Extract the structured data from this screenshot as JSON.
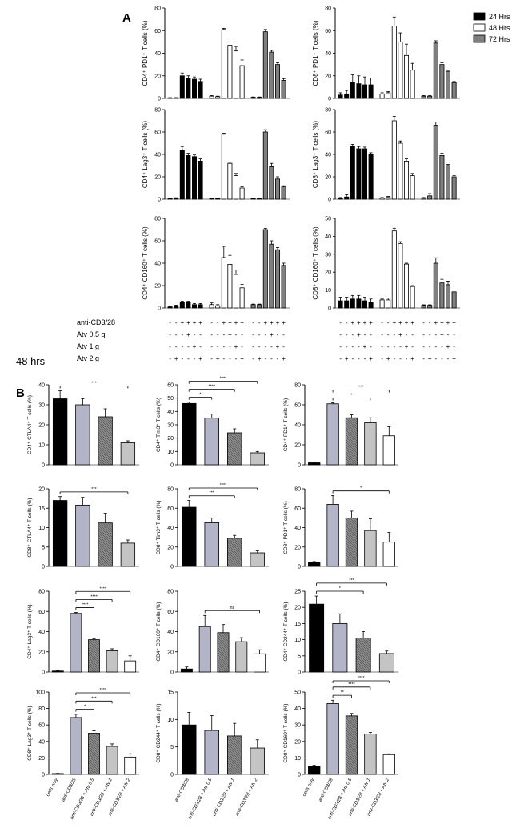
{
  "panel_labels": {
    "a": "A",
    "b": "B"
  },
  "section_label": "48 hrs",
  "legend": [
    {
      "label": "24 Hrs",
      "color": "#000000"
    },
    {
      "label": "48 Hrs",
      "color": "#ffffff"
    },
    {
      "label": "72 Hrs",
      "color": "#7f7f7f"
    }
  ],
  "conditions": {
    "labels": [
      "anti-CD3/28",
      "Atv 0.5 \u0003g",
      "Atv 1 \u0003g",
      "Atv 2 \u0003g"
    ],
    "rows": [
      [
        "-",
        "-",
        "+",
        "+",
        "+",
        "+"
      ],
      [
        "-",
        "-",
        "-",
        "+",
        "-",
        "-"
      ],
      [
        "-",
        "-",
        "-",
        "-",
        "+",
        "-"
      ],
      [
        "-",
        "+",
        "-",
        "-",
        "-",
        "+"
      ]
    ]
  },
  "chart_data": [
    {
      "type": "bar",
      "panel": "A",
      "ylabel": "CD4⁺ PD1⁺ T cells (%)",
      "ylim": [
        0,
        80
      ],
      "yticks": [
        "0",
        "20",
        "40",
        "60",
        "80"
      ],
      "series": [
        {
          "name": "24 Hrs",
          "values": [
            0.5,
            0.5,
            20,
            18,
            17,
            15
          ],
          "errors": [
            0.2,
            0.2,
            2.5,
            2,
            2,
            2
          ]
        },
        {
          "name": "48 Hrs",
          "values": [
            2,
            1.5,
            61,
            47,
            42,
            29
          ],
          "errors": [
            0.5,
            0.5,
            1,
            3,
            4,
            5
          ]
        },
        {
          "name": "72 Hrs",
          "values": [
            1,
            1,
            59,
            41,
            30,
            16
          ],
          "errors": [
            0.3,
            0.3,
            2,
            1.5,
            1.5,
            1.5
          ]
        }
      ]
    },
    {
      "type": "bar",
      "panel": "A",
      "ylabel": "CD8⁺ PD1⁺ T cells (%)",
      "ylim": [
        0,
        80
      ],
      "yticks": [
        "0",
        "20",
        "40",
        "60",
        "80"
      ],
      "series": [
        {
          "name": "24 Hrs",
          "values": [
            3,
            4,
            14,
            13,
            12,
            12
          ],
          "errors": [
            2,
            3,
            7,
            7,
            7,
            6
          ]
        },
        {
          "name": "48 Hrs",
          "values": [
            4,
            5,
            64,
            50,
            38,
            25
          ],
          "errors": [
            1,
            1,
            8,
            8,
            10,
            6
          ]
        },
        {
          "name": "72 Hrs",
          "values": [
            2,
            2,
            49,
            30,
            24,
            14
          ],
          "errors": [
            0.5,
            0.5,
            2,
            1.5,
            1,
            1
          ]
        }
      ]
    },
    {
      "type": "bar",
      "panel": "A",
      "ylabel": "CD4⁺ Lag3⁺ T cells (%)",
      "ylim": [
        0,
        80
      ],
      "yticks": [
        "0",
        "20",
        "40",
        "60",
        "80"
      ],
      "series": [
        {
          "name": "24 Hrs",
          "values": [
            0.5,
            1,
            44,
            39,
            38,
            34
          ],
          "errors": [
            0.3,
            0.3,
            3,
            2,
            1.5,
            2
          ]
        },
        {
          "name": "48 Hrs",
          "values": [
            0.5,
            0.5,
            58,
            32,
            21,
            10
          ],
          "errors": [
            0.2,
            0.2,
            1,
            1,
            2,
            1
          ]
        },
        {
          "name": "72 Hrs",
          "values": [
            0.5,
            0.5,
            60,
            29,
            18,
            11
          ],
          "errors": [
            0.2,
            0.2,
            2,
            3,
            2,
            1
          ]
        }
      ]
    },
    {
      "type": "bar",
      "panel": "A",
      "ylabel": "CD8⁺ Lag3⁺ T cells (%)",
      "ylim": [
        0,
        80
      ],
      "yticks": [
        "0",
        "20",
        "40",
        "60",
        "80"
      ],
      "series": [
        {
          "name": "24 Hrs",
          "values": [
            1,
            2,
            47,
            45,
            45,
            40
          ],
          "errors": [
            0.5,
            2,
            2,
            2,
            1.5,
            1.5
          ]
        },
        {
          "name": "48 Hrs",
          "values": [
            1,
            2,
            70,
            50,
            34,
            21
          ],
          "errors": [
            0.5,
            0.5,
            4,
            2,
            2,
            2
          ]
        },
        {
          "name": "72 Hrs",
          "values": [
            1,
            3,
            66,
            39,
            30,
            20
          ],
          "errors": [
            0.5,
            2,
            3,
            2,
            1,
            1
          ]
        }
      ]
    },
    {
      "type": "bar",
      "panel": "A",
      "ylabel": "CD4⁺ CD160⁺ T cells (%)",
      "ylim": [
        0,
        80
      ],
      "yticks": [
        "0",
        "20",
        "40",
        "60",
        "80"
      ],
      "series": [
        {
          "name": "24 Hrs",
          "values": [
            1,
            2,
            5,
            5,
            3,
            3
          ],
          "errors": [
            0.5,
            0.5,
            1,
            1,
            1,
            1
          ]
        },
        {
          "name": "48 Hrs",
          "values": [
            3,
            2,
            45,
            39,
            30,
            18
          ],
          "errors": [
            1.5,
            1,
            10,
            8,
            4,
            3
          ]
        },
        {
          "name": "72 Hrs",
          "values": [
            3,
            3,
            70,
            57,
            52,
            38
          ],
          "errors": [
            0.5,
            0.5,
            1,
            3,
            2,
            2
          ]
        }
      ]
    },
    {
      "type": "bar",
      "panel": "A",
      "ylabel": "CD8⁺ CD160⁺ T cells (%)",
      "ylim": [
        0,
        50
      ],
      "yticks": [
        "0",
        "10",
        "20",
        "30",
        "40",
        "50"
      ],
      "series": [
        {
          "name": "24 Hrs",
          "values": [
            4,
            4,
            5,
            5,
            4,
            3
          ],
          "errors": [
            2,
            2,
            2,
            2,
            2,
            2
          ]
        },
        {
          "name": "48 Hrs",
          "values": [
            4.5,
            4.5,
            43,
            36,
            24.5,
            12
          ],
          "errors": [
            0.5,
            1,
            1.5,
            1,
            0.5,
            0.5
          ]
        },
        {
          "name": "72 Hrs",
          "values": [
            1.5,
            1.5,
            25,
            14,
            13,
            9
          ],
          "errors": [
            0.3,
            0.3,
            3,
            2,
            2,
            1
          ]
        }
      ]
    },
    {
      "type": "bar",
      "panel": "B",
      "ylabel": "CD4⁺ CTLA4⁺ T cells (%)",
      "ylim": [
        0,
        40
      ],
      "yticks": [
        "0",
        "10",
        "20",
        "30",
        "40"
      ],
      "values": [
        33,
        30,
        24,
        11
      ],
      "errors": [
        4,
        3,
        4,
        1
      ],
      "sig": [
        {
          "a": 0,
          "b": 3,
          "label": "***"
        }
      ]
    },
    {
      "type": "bar",
      "panel": "B",
      "ylabel": "CD4⁺ Tim3⁺ T cells (%)",
      "ylim": [
        0,
        60
      ],
      "yticks": [
        "0",
        "10",
        "20",
        "30",
        "40",
        "50",
        "60"
      ],
      "values": [
        46,
        35,
        24,
        9
      ],
      "errors": [
        1,
        3,
        3,
        1
      ],
      "sig": [
        {
          "a": 0,
          "b": 1,
          "label": "*"
        },
        {
          "a": 0,
          "b": 2,
          "label": "****"
        },
        {
          "a": 0,
          "b": 3,
          "label": "****"
        }
      ]
    },
    {
      "type": "bar",
      "panel": "B",
      "ylabel": "CD4⁺ PD1⁺ T cells (%)",
      "ylim": [
        0,
        80
      ],
      "yticks": [
        "0",
        "20",
        "40",
        "60",
        "80"
      ],
      "values": [
        2,
        61,
        47,
        42,
        29
      ],
      "errors": [
        0.5,
        1,
        3,
        5,
        9
      ],
      "sig": [
        {
          "a": 1,
          "b": 3,
          "label": "*"
        },
        {
          "a": 1,
          "b": 4,
          "label": "***"
        }
      ]
    },
    {
      "type": "bar",
      "panel": "B",
      "ylabel": "CD8⁺ CTLA4⁺ T cells (%)",
      "ylim": [
        0,
        20
      ],
      "yticks": [
        "0",
        "5",
        "10",
        "15",
        "20"
      ],
      "values": [
        17,
        15.8,
        11.2,
        6
      ],
      "errors": [
        1,
        2,
        2.5,
        0.8
      ],
      "sig": [
        {
          "a": 0,
          "b": 3,
          "label": "***"
        }
      ]
    },
    {
      "type": "bar",
      "panel": "B",
      "ylabel": "CD8⁺ Tim3⁺ T cells (%)",
      "ylim": [
        0,
        80
      ],
      "yticks": [
        "0",
        "20",
        "40",
        "60",
        "80"
      ],
      "values": [
        61,
        45,
        29,
        14
      ],
      "errors": [
        7,
        5,
        3,
        2
      ],
      "sig": [
        {
          "a": 0,
          "b": 2,
          "label": "***"
        },
        {
          "a": 0,
          "b": 3,
          "label": "****"
        }
      ]
    },
    {
      "type": "bar",
      "panel": "B",
      "ylabel": "CD8⁺ PD1⁺ T cells (%)",
      "ylim": [
        0,
        80
      ],
      "yticks": [
        "0",
        "20",
        "40",
        "60",
        "80"
      ],
      "values": [
        4,
        64,
        50,
        37,
        25
      ],
      "errors": [
        1,
        9,
        7,
        12,
        10
      ],
      "sig": [
        {
          "a": 1,
          "b": 4,
          "label": "*"
        }
      ]
    },
    {
      "type": "bar",
      "panel": "B",
      "ylabel": "CD4⁺ Lag3⁺ T cells (%)",
      "ylim": [
        0,
        80
      ],
      "yticks": [
        "0",
        "20",
        "40",
        "60",
        "80"
      ],
      "values": [
        1,
        58,
        32,
        21,
        11
      ],
      "errors": [
        0.3,
        1,
        1,
        2,
        5
      ],
      "sig": [
        {
          "a": 1,
          "b": 2,
          "label": "****"
        },
        {
          "a": 1,
          "b": 3,
          "label": "****"
        },
        {
          "a": 1,
          "b": 4,
          "label": "****"
        }
      ]
    },
    {
      "type": "bar",
      "panel": "B",
      "ylabel": "CD4⁺ CD160⁺ T cells (%)",
      "ylim": [
        0,
        80
      ],
      "yticks": [
        "0",
        "20",
        "40",
        "60",
        "80"
      ],
      "values": [
        3,
        45,
        39,
        30,
        18
      ],
      "errors": [
        2,
        11,
        8,
        4,
        4
      ],
      "sig": [
        {
          "a": 1,
          "b": 4,
          "label": "ns"
        }
      ]
    },
    {
      "type": "bar",
      "panel": "B",
      "ylabel": "CD4⁺ CD244⁺ T cells (%)",
      "ylim": [
        0,
        25
      ],
      "yticks": [
        "0",
        "5",
        "10",
        "15",
        "20",
        "25"
      ],
      "values": [
        21,
        15,
        10.5,
        5.7
      ],
      "errors": [
        2.5,
        3,
        2,
        0.8
      ],
      "sig": [
        {
          "a": 0,
          "b": 2,
          "label": "*"
        },
        {
          "a": 0,
          "b": 3,
          "label": "***"
        }
      ]
    },
    {
      "type": "bar",
      "panel": "B",
      "ylabel": "CD8⁺ Lag3⁺ T cells (%)",
      "ylim": [
        0,
        100
      ],
      "yticks": [
        "0",
        "20",
        "40",
        "60",
        "80",
        "100"
      ],
      "values": [
        1,
        69,
        50,
        34,
        21
      ],
      "errors": [
        0.3,
        4,
        3,
        3,
        4
      ],
      "sig": [
        {
          "a": 1,
          "b": 2,
          "label": "*"
        },
        {
          "a": 1,
          "b": 3,
          "label": "***"
        },
        {
          "a": 1,
          "b": 4,
          "label": "****"
        }
      ],
      "categories": [
        "cells only",
        "anti-CD3/28",
        "anti-CD3/28 + Atv 0.5",
        "anti-CD3/28 + Atv 1",
        "anti-CD3/28 + Atv 2"
      ]
    },
    {
      "type": "bar",
      "panel": "B",
      "ylabel": "CD8⁺ CD244⁺ T cells (%)",
      "ylim": [
        0,
        15
      ],
      "yticks": [
        "0",
        "5",
        "10",
        "15"
      ],
      "values": [
        9,
        8,
        7,
        4.8
      ],
      "errors": [
        2.3,
        2.7,
        2.3,
        1.5
      ],
      "sig": [],
      "categories": [
        "anti-CD3/28",
        "anti-CD3/28 + Atv 0.5",
        "anti-CD3/28 + Atv 1",
        "anti-CD3/28 + Atv 2"
      ]
    },
    {
      "type": "bar",
      "panel": "B",
      "ylabel": "CD8⁺ CD160⁺ T cells (%)",
      "ylim": [
        0,
        50
      ],
      "yticks": [
        "0",
        "10",
        "20",
        "30",
        "40",
        "50"
      ],
      "values": [
        5,
        43,
        35.5,
        24.5,
        12
      ],
      "errors": [
        0.5,
        2,
        1.5,
        1,
        0.5
      ],
      "sig": [
        {
          "a": 1,
          "b": 2,
          "label": "**"
        },
        {
          "a": 1,
          "b": 3,
          "label": "****"
        },
        {
          "a": 1,
          "b": 4,
          "label": "****"
        }
      ],
      "categories": [
        "cells only",
        "anti-CD3/28",
        "anti-CD3/28 + Atv 0.5",
        "anti-CD3/28 + Atv 1",
        "anti-CD3/28 + Atv 2"
      ]
    }
  ]
}
